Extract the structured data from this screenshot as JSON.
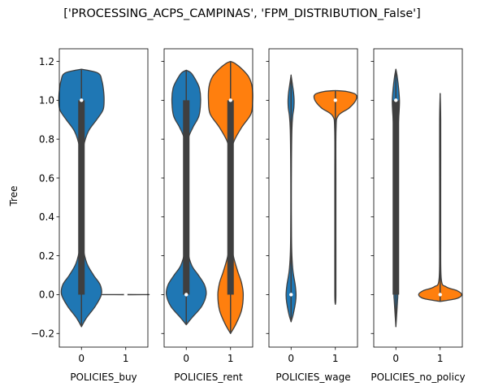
{
  "chart_data": {
    "type": "violin",
    "title": "['PROCESSING_ACPS_CAMPINAS', 'FPM_DISTRIBUTION_False']",
    "ylabel": "Tree",
    "ylim": [
      -0.27,
      1.265
    ],
    "yticks": [
      {
        "value": -0.2,
        "label": "−0.2"
      },
      {
        "value": 0.0,
        "label": "0.0"
      },
      {
        "value": 0.2,
        "label": "0.2"
      },
      {
        "value": 0.4,
        "label": "0.4"
      },
      {
        "value": 0.6,
        "label": "0.6"
      },
      {
        "value": 0.8,
        "label": "0.8"
      },
      {
        "value": 1.0,
        "label": "1.0"
      },
      {
        "value": 1.2,
        "label": "1.2"
      }
    ],
    "sharey": true,
    "colors": {
      "0": "#1f77b4",
      "1": "#ff7f0e",
      "inner": "#3f3f3f"
    },
    "subplots": [
      {
        "xlabel": "POLICIES_buy",
        "categories": [
          "0",
          "1"
        ],
        "violins": [
          {
            "category": "0",
            "color": "#1f77b4",
            "median": 1.0,
            "q1": 0.0,
            "q3": 1.0,
            "profile": [
              [
                -0.165,
                0
              ],
              [
                -0.12,
                0.18
              ],
              [
                -0.06,
                0.5
              ],
              [
                0.0,
                0.72
              ],
              [
                0.05,
                0.68
              ],
              [
                0.1,
                0.44
              ],
              [
                0.16,
                0.2
              ],
              [
                0.24,
                0.06
              ],
              [
                0.32,
                0.02
              ],
              [
                0.5,
                0.01
              ],
              [
                0.68,
                0.02
              ],
              [
                0.76,
                0.07
              ],
              [
                0.84,
                0.25
              ],
              [
                0.9,
                0.55
              ],
              [
                0.95,
                0.78
              ],
              [
                1.0,
                0.82
              ],
              [
                1.05,
                0.8
              ],
              [
                1.1,
                0.74
              ],
              [
                1.14,
                0.6
              ],
              [
                1.16,
                0
              ]
            ]
          },
          {
            "category": "1",
            "color": "#ff7f0e",
            "median": 0.0,
            "q1": 0.0,
            "q3": 0.0,
            "profile": [
              [
                -0.0005,
                0
              ],
              [
                0.0,
                0.85
              ],
              [
                0.0005,
                0
              ]
            ]
          }
        ]
      },
      {
        "xlabel": "POLICIES_rent",
        "categories": [
          "0",
          "1"
        ],
        "violins": [
          {
            "category": "0",
            "color": "#1f77b4",
            "median": 0.0,
            "q1": 0.0,
            "q3": 1.0,
            "profile": [
              [
                -0.155,
                0
              ],
              [
                -0.12,
                0.2
              ],
              [
                -0.06,
                0.56
              ],
              [
                0.0,
                0.72
              ],
              [
                0.05,
                0.66
              ],
              [
                0.1,
                0.44
              ],
              [
                0.15,
                0.2
              ],
              [
                0.22,
                0.06
              ],
              [
                0.32,
                0.02
              ],
              [
                0.5,
                0.015
              ],
              [
                0.7,
                0.02
              ],
              [
                0.8,
                0.07
              ],
              [
                0.86,
                0.24
              ],
              [
                0.92,
                0.46
              ],
              [
                1.0,
                0.52
              ],
              [
                1.06,
                0.48
              ],
              [
                1.1,
                0.36
              ],
              [
                1.14,
                0.18
              ],
              [
                1.155,
                0
              ]
            ]
          },
          {
            "category": "1",
            "color": "#ff7f0e",
            "median": 1.0,
            "q1": 0.0,
            "q3": 1.0,
            "profile": [
              [
                -0.2,
                0
              ],
              [
                -0.15,
                0.2
              ],
              [
                -0.08,
                0.4
              ],
              [
                0.0,
                0.46
              ],
              [
                0.06,
                0.4
              ],
              [
                0.12,
                0.26
              ],
              [
                0.2,
                0.1
              ],
              [
                0.28,
                0.03
              ],
              [
                0.5,
                0.015
              ],
              [
                0.7,
                0.03
              ],
              [
                0.78,
                0.1
              ],
              [
                0.86,
                0.4
              ],
              [
                0.93,
                0.74
              ],
              [
                1.0,
                0.8
              ],
              [
                1.07,
                0.78
              ],
              [
                1.12,
                0.66
              ],
              [
                1.16,
                0.42
              ],
              [
                1.19,
                0.16
              ],
              [
                1.2,
                0
              ]
            ]
          }
        ]
      },
      {
        "xlabel": "POLICIES_wage",
        "categories": [
          "0",
          "1"
        ],
        "violins": [
          {
            "category": "0",
            "color": "#1f77b4",
            "median": 0.0,
            "q1": 0.0,
            "q3": 0.0,
            "profile": [
              [
                -0.14,
                0
              ],
              [
                -0.1,
                0.08
              ],
              [
                -0.04,
                0.16
              ],
              [
                0.0,
                0.18
              ],
              [
                0.05,
                0.15
              ],
              [
                0.12,
                0.07
              ],
              [
                0.2,
                0.03
              ],
              [
                0.3,
                0.015
              ],
              [
                0.5,
                0.01
              ],
              [
                0.7,
                0.015
              ],
              [
                0.85,
                0.03
              ],
              [
                0.92,
                0.06
              ],
              [
                0.96,
                0.1
              ],
              [
                1.0,
                0.11
              ],
              [
                1.04,
                0.09
              ],
              [
                1.08,
                0.05
              ],
              [
                1.13,
                0
              ]
            ]
          },
          {
            "category": "1",
            "color": "#ff7f0e",
            "median": 1.0,
            "q1": 1.0,
            "q3": 1.0,
            "profile": [
              [
                -0.05,
                0
              ],
              [
                0.0,
                0.02
              ],
              [
                0.3,
                0.02
              ],
              [
                0.6,
                0.02
              ],
              [
                0.85,
                0.025
              ],
              [
                0.92,
                0.1
              ],
              [
                0.96,
                0.5
              ],
              [
                1.0,
                0.74
              ],
              [
                1.03,
                0.74
              ],
              [
                1.045,
                0.42
              ],
              [
                1.05,
                0
              ]
            ]
          }
        ]
      },
      {
        "xlabel": "POLICIES_no_policy",
        "categories": [
          "0",
          "1"
        ],
        "violins": [
          {
            "category": "0",
            "color": "#1f77b4",
            "median": 1.0,
            "q1": 0.0,
            "q3": 1.0,
            "profile": [
              [
                -0.165,
                0
              ],
              [
                -0.1,
                0.03
              ],
              [
                -0.03,
                0.06
              ],
              [
                0.0,
                0.07
              ],
              [
                0.1,
                0.06
              ],
              [
                0.3,
                0.055
              ],
              [
                0.5,
                0.055
              ],
              [
                0.7,
                0.06
              ],
              [
                0.85,
                0.08
              ],
              [
                0.95,
                0.12
              ],
              [
                1.0,
                0.13
              ],
              [
                1.06,
                0.1
              ],
              [
                1.12,
                0.05
              ],
              [
                1.16,
                0
              ]
            ]
          },
          {
            "category": "1",
            "color": "#ff7f0e",
            "median": 0.0,
            "q1": 0.0,
            "q3": 0.0,
            "profile": [
              [
                -0.035,
                0
              ],
              [
                -0.02,
                0.6
              ],
              [
                0.0,
                0.78
              ],
              [
                0.02,
                0.62
              ],
              [
                0.04,
                0.22
              ],
              [
                0.08,
                0.04
              ],
              [
                0.3,
                0.02
              ],
              [
                0.6,
                0.02
              ],
              [
                0.9,
                0.02
              ],
              [
                1.035,
                0
              ]
            ]
          }
        ]
      }
    ]
  }
}
